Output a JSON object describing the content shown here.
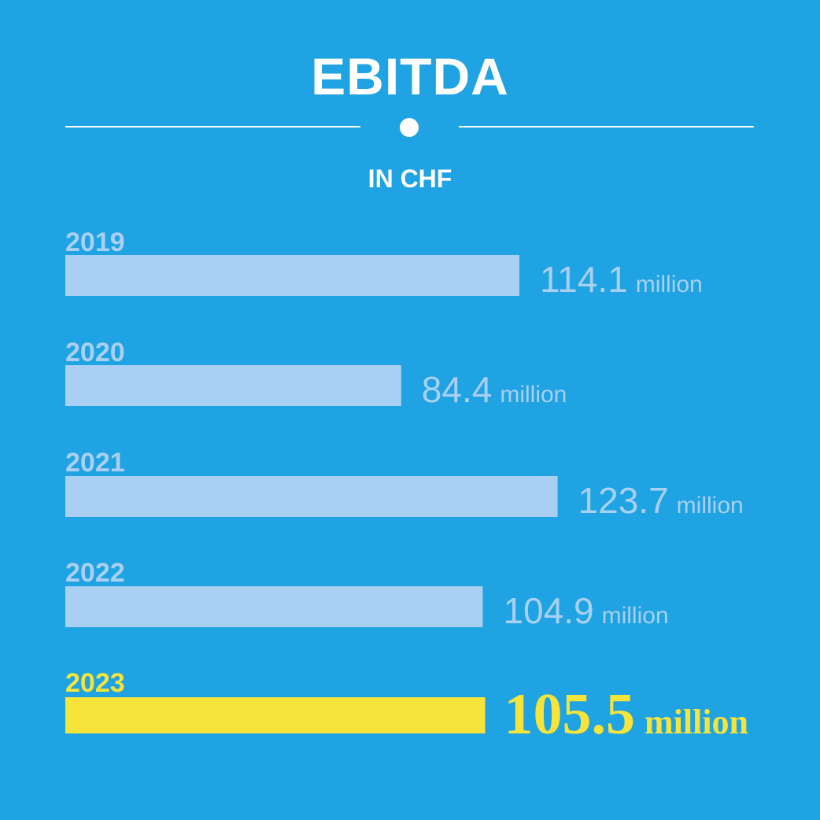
{
  "colors": {
    "background": "#1fa3e2",
    "title": "#ffffff",
    "bar_default": "#a9d0f2",
    "bar_highlight": "#f7e43a"
  },
  "chart_data": {
    "type": "bar",
    "orientation": "horizontal",
    "title": "EBITDA",
    "subtitle": "IN CHF",
    "categories": [
      "2019",
      "2020",
      "2021",
      "2022",
      "2023"
    ],
    "values": [
      114.1,
      84.4,
      123.7,
      104.9,
      105.5
    ],
    "value_labels": [
      "114.1",
      "84.4",
      "123.7",
      "104.9",
      "105.5"
    ],
    "unit_label": "million",
    "highlight_category": "2023",
    "grid": false,
    "legend": "none"
  }
}
